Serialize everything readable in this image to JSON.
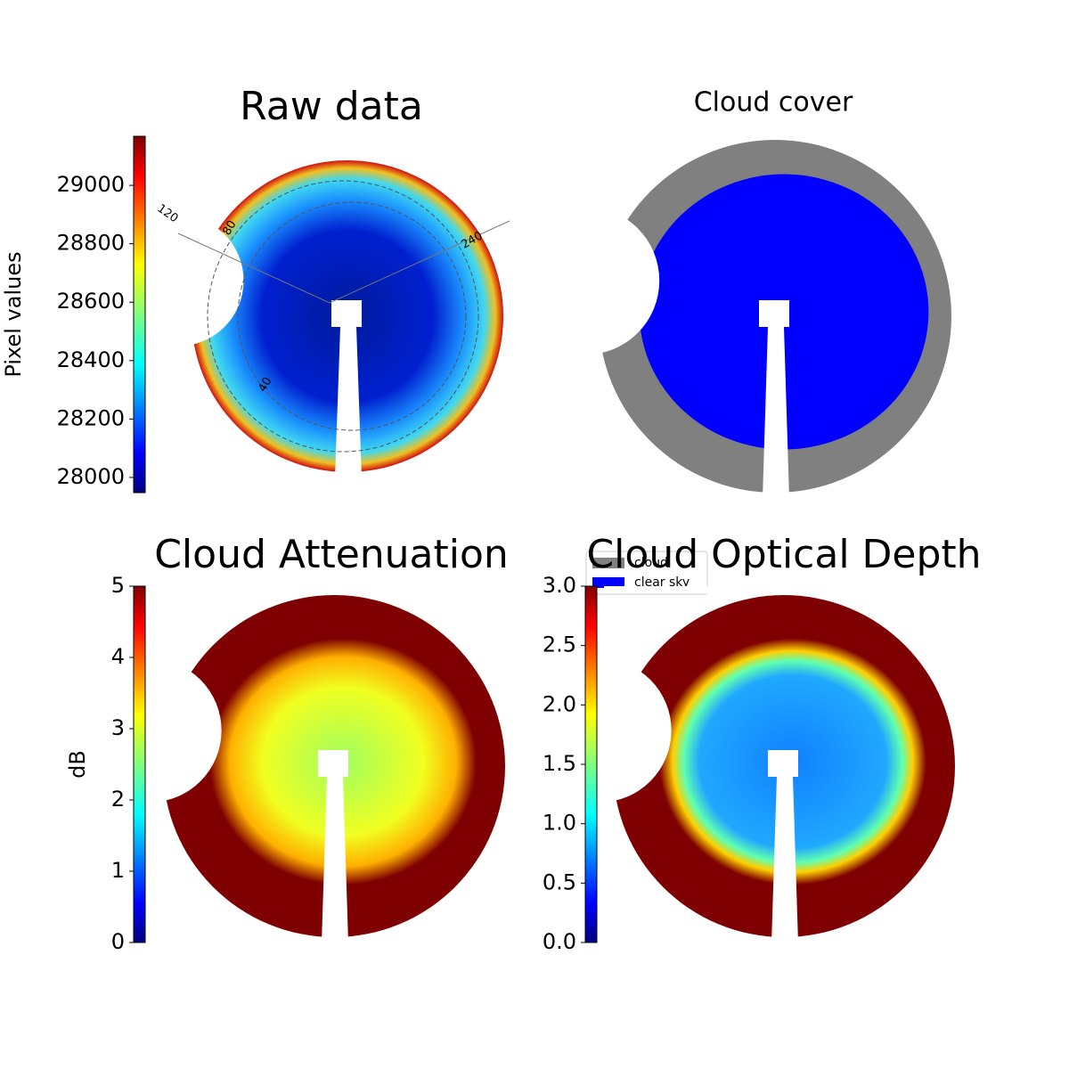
{
  "chart_data": [
    {
      "type": "image",
      "title": "Raw data",
      "colorbar_label": "Pixel values",
      "colormap": "jet",
      "ylim": [
        27948,
        29168
      ],
      "yticks": [
        28000,
        28200,
        28400,
        28600,
        28800,
        29000
      ],
      "annotations": [
        "120",
        "80",
        "240",
        "40"
      ]
    },
    {
      "type": "image",
      "title": "Cloud cover",
      "legend": [
        {
          "name": "cloud",
          "color": "#808080"
        },
        {
          "name": "clear sky",
          "color": "#0000ff"
        }
      ]
    },
    {
      "type": "image",
      "title": "Cloud Attenuation",
      "colorbar_label": "dB",
      "colormap": "jet",
      "ylim": [
        0,
        5
      ],
      "yticks": [
        0,
        1,
        2,
        3,
        4,
        5
      ]
    },
    {
      "type": "image",
      "title": "Cloud Optical Depth",
      "colormap": "jet",
      "ylim": [
        0,
        3
      ],
      "yticks": [
        {
          "value": 0,
          "label": "0.0"
        },
        0.5,
        {
          "value": 1,
          "label": "1.0"
        },
        1.5,
        {
          "value": 2,
          "label": "2.0"
        },
        2.5,
        {
          "value": 3,
          "label": "3.0"
        }
      ]
    }
  ]
}
